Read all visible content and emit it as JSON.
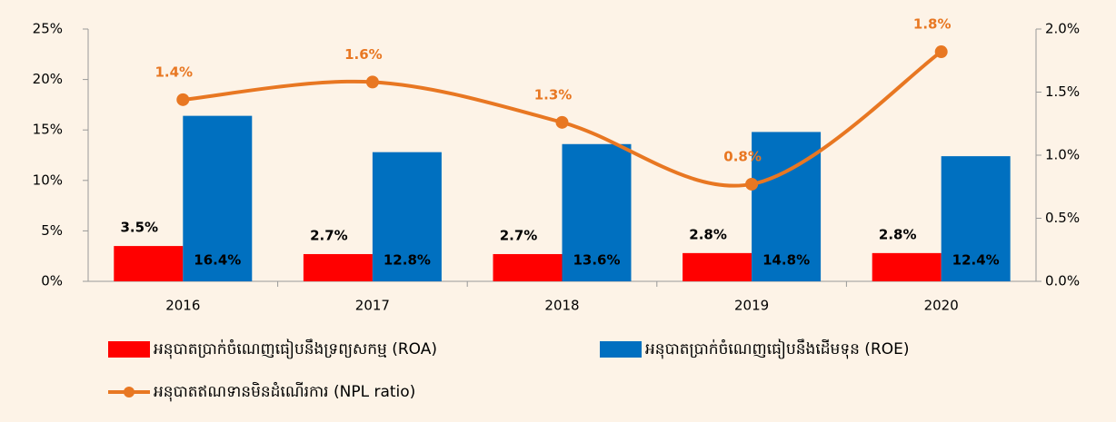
{
  "chart_data": {
    "type": "bar-line",
    "categories": [
      "2016",
      "2017",
      "2018",
      "2019",
      "2020"
    ],
    "series": [
      {
        "name": "អនុបាតប្រាក់ចំណេញធៀបនឹងទ្រព្យសកម្ម (ROA)",
        "color": "#ff0000",
        "values": [
          3.5,
          2.7,
          2.7,
          2.8,
          2.8
        ],
        "value_labels": [
          "3.5%",
          "2.7%",
          "2.7%",
          "2.8%",
          "2.8%"
        ]
      },
      {
        "name": "អនុបាតប្រាក់ចំណេញធៀបនឹងដើមទុន (ROE)",
        "color": "#0070c0",
        "values": [
          16.4,
          12.8,
          13.6,
          14.8,
          12.4
        ],
        "value_labels": [
          "16.4%",
          "12.8%",
          "13.6%",
          "14.8%",
          "12.4%"
        ]
      },
      {
        "name": "អនុបាតឥណទានមិនដំណើរការ (NPL ratio)",
        "color": "#e87722",
        "axis": "y2",
        "values": [
          1.44,
          1.58,
          1.26,
          0.77,
          1.82
        ],
        "value_labels": [
          "1.4%",
          "1.6%",
          "1.3%",
          "0.8%",
          "1.8%"
        ]
      }
    ],
    "ylim": [
      0,
      25
    ],
    "yticks": [
      {
        "value": 0,
        "label": "0%"
      },
      {
        "value": 5,
        "label": "5%"
      },
      {
        "value": 10,
        "label": "10%"
      },
      {
        "value": 15,
        "label": "15%"
      },
      {
        "value": 20,
        "label": "20%"
      },
      {
        "value": 25,
        "label": "25%"
      }
    ],
    "y2lim": [
      0,
      2
    ],
    "y2ticks": [
      {
        "value": 0,
        "label": "0.0%"
      },
      {
        "value": 0.5,
        "label": "0.5%"
      },
      {
        "value": 1,
        "label": "1.0%"
      },
      {
        "value": 1.5,
        "label": "1.5%"
      },
      {
        "value": 2,
        "label": "2.0%"
      }
    ]
  }
}
